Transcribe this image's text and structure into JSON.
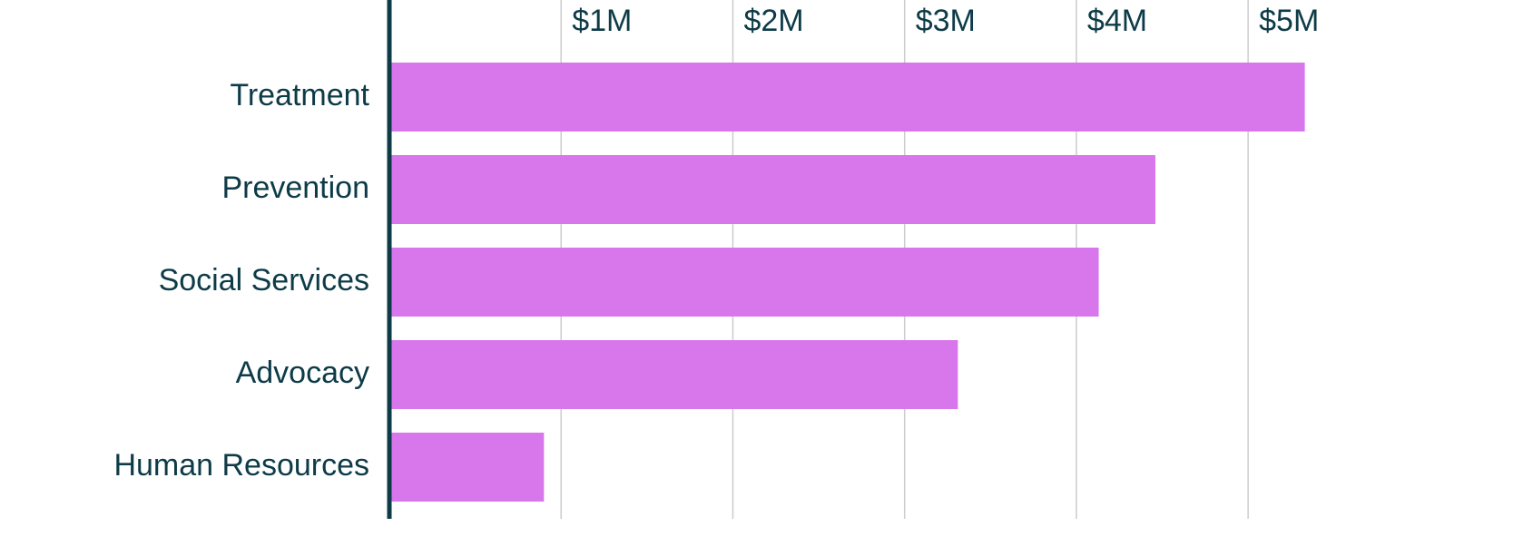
{
  "chart_data": {
    "type": "bar",
    "orientation": "horizontal",
    "categories": [
      "Treatment",
      "Prevention",
      "Social Services",
      "Advocacy",
      "Human Resources"
    ],
    "values": [
      5330000,
      4460000,
      4130000,
      3310000,
      900000
    ],
    "color": "#d876ec",
    "xlim": [
      0,
      6500000
    ],
    "xticks": [
      {
        "value": 1000000,
        "label": "$1M"
      },
      {
        "value": 2000000,
        "label": "$2M"
      },
      {
        "value": 3000000,
        "label": "$3M"
      },
      {
        "value": 4000000,
        "label": "$4M"
      },
      {
        "value": 5000000,
        "label": "$5M"
      }
    ],
    "grid": true
  }
}
